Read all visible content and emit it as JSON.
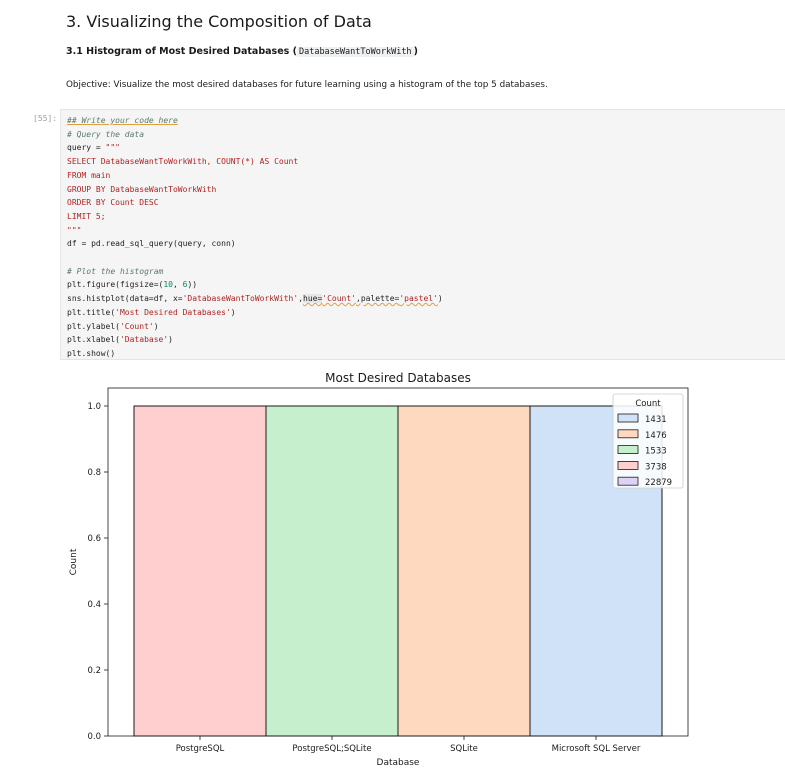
{
  "notebook": {
    "section_title": "3. Visualizing the Composition of Data",
    "subsection_prefix": "3.1 Histogram of Most Desired Databases (",
    "subsection_code": "DatabaseWantToWorkWith",
    "subsection_suffix": ")",
    "objective": "Objective: Visualize the most desired databases for future learning using a histogram of the top 5 databases.",
    "cell_prompt": "[55]:"
  },
  "code_lines": {
    "l1": "## Write your code here",
    "l2": "# Query the data",
    "l3a": "query = ",
    "l3b": "\"\"\"",
    "l4": "SELECT DatabaseWantToWorkWith, COUNT(*) AS Count",
    "l5": "FROM main",
    "l6": "GROUP BY DatabaseWantToWorkWith",
    "l7": "ORDER BY Count DESC",
    "l8": "LIMIT 5;",
    "l9": "\"\"\"",
    "l10a": "df = pd.read_sql_query(query, conn)",
    "l11": "# Plot the histogram",
    "l12a": "plt.figure(figsize=(",
    "l12b": "10",
    "l12c": ", ",
    "l12d": "6",
    "l12e": "))",
    "l13a": "sns.histplot(data=df, x=",
    "l13b": "'DatabaseWantToWorkWith'",
    "l13c": ",",
    "l13d": "hue=",
    "l13e": "'Count'",
    "l13f": ",palette=",
    "l13g": "'pastel'",
    "l13h": ")",
    "l14a": "plt.title(",
    "l14b": "'Most Desired Databases'",
    "l14c": ")",
    "l15a": "plt.ylabel(",
    "l15b": "'Count'",
    "l15c": ")",
    "l16a": "plt.xlabel(",
    "l16b": "'Database'",
    "l16c": ")",
    "l17": "plt.show()"
  },
  "chart_data": {
    "type": "bar",
    "title": "Most Desired Databases",
    "xlabel": "Database",
    "ylabel": "Count",
    "ylim": [
      0,
      1.0
    ],
    "yticks": [
      "0.0",
      "0.2",
      "0.4",
      "0.6",
      "0.8",
      "1.0"
    ],
    "categories": [
      "PostgreSQL",
      "PostgreSQL;SQLite",
      "SQLite",
      "Microsoft SQL Server"
    ],
    "values": [
      1,
      1,
      1,
      1
    ],
    "bar_colors": [
      "#ffcfcf",
      "#c6efcd",
      "#ffd9bf",
      "#cfe2f7"
    ],
    "legend": {
      "title": "Count",
      "placement": "top-right",
      "entries": [
        {
          "label": "1431",
          "color": "#cfe2f7"
        },
        {
          "label": "1476",
          "color": "#ffd9bf"
        },
        {
          "label": "1533",
          "color": "#c6efcd"
        },
        {
          "label": "3738",
          "color": "#ffcfcf"
        },
        {
          "label": "22879",
          "color": "#dcd3f7"
        }
      ]
    },
    "grid": false
  }
}
